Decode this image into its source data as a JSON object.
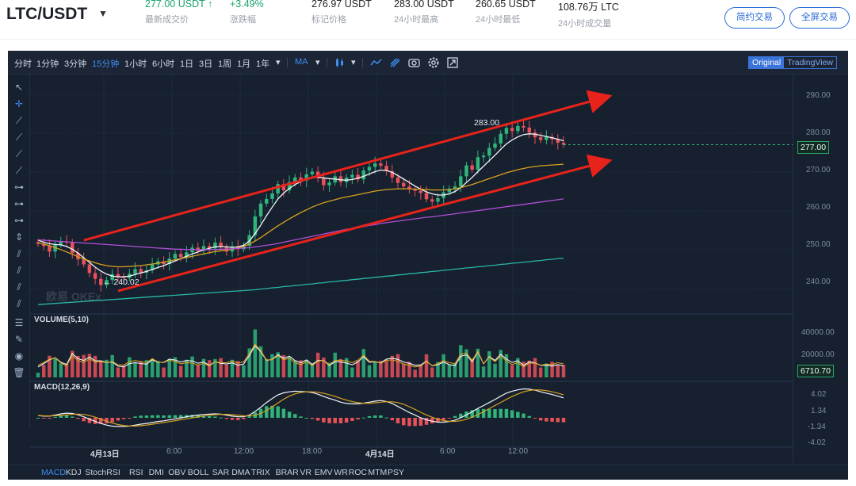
{
  "ticker": {
    "pair": "LTC/USDT",
    "caret": "▼",
    "last_price": "277.00 USDT ↑",
    "last_price_label": "最新成交价",
    "change": "+3.49%",
    "change_label": "涨跌幅",
    "mark_price": "276.97 USDT",
    "mark_price_label": "标记价格",
    "high": "283.00 USDT",
    "high_label": "24小时最高",
    "low": "260.65 USDT",
    "low_label": "24小时最低",
    "volume": "108.76万 LTC",
    "volume_label": "24小时成交量",
    "simple_btn": "简约交易",
    "full_btn": "全屏交易"
  },
  "toolbar": {
    "intervals": [
      "分时",
      "1分钟",
      "3分钟",
      "15分钟",
      "1小时",
      "6小时",
      "1日",
      "3日",
      "1周",
      "1月",
      "1年"
    ],
    "active_interval": "15分钟",
    "ma_label": "MA",
    "original_label": "Original",
    "tradingview_label": "TradingView"
  },
  "indicators": [
    "MACD",
    "KDJ",
    "StochRSI",
    "RSI",
    "DMI",
    "OBV",
    "BOLL",
    "SAR",
    "DMA",
    "TRIX",
    "BRAR",
    "VR",
    "EMV",
    "WR",
    "ROC",
    "MTM",
    "PSY"
  ],
  "active_indicator": "MACD",
  "panels": {
    "volume_label": "VOLUME(5,10)",
    "macd_label": "MACD(12,26,9)",
    "watermark": "欧易 OKEx",
    "high_annotation": "283.00",
    "low_annotation": "← 240.02"
  },
  "colors": {
    "up": "#2fb57a",
    "down": "#e8515a",
    "accent": "#3d8ef0",
    "trend": "#e8231b"
  },
  "chart_data": {
    "type": "candlestick",
    "price_axis_ticks": [
      "290.00",
      "280.00",
      "270.00",
      "260.00",
      "250.00",
      "240.00"
    ],
    "price_ylim": [
      234,
      295
    ],
    "current_price": "277.00",
    "volume_axis_ticks": [
      "40000.00",
      "20000.00"
    ],
    "current_volume": "6710.70",
    "macd_axis_ticks": [
      "4.02",
      "1.34",
      "-1.34",
      "-4.02"
    ],
    "x_ticks": [
      "4月13日",
      "6:00",
      "12:00",
      "18:00",
      "4月14日",
      "6:00",
      "12:00"
    ],
    "x_bold": [
      "4月13日",
      "4月14日"
    ],
    "high": 283.0,
    "low": 240.02,
    "close_series": [
      251.6,
      251.0,
      249.6,
      251.4,
      252.1,
      251.9,
      249.2,
      247.6,
      246.3,
      244.1,
      242.6,
      241.0,
      242.3,
      243.8,
      243.2,
      242.8,
      243.9,
      245.1,
      244.2,
      244.8,
      246.3,
      247.1,
      246.4,
      247.8,
      249.0,
      248.2,
      249.4,
      250.6,
      249.8,
      251.0,
      250.4,
      251.9,
      250.7,
      249.6,
      250.9,
      250.2,
      251.1,
      253.8,
      258.6,
      261.9,
      263.1,
      264.5,
      266.9,
      265.3,
      267.4,
      268.6,
      267.8,
      269.4,
      270.1,
      268.4,
      266.6,
      267.3,
      268.9,
      267.4,
      268.6,
      269.3,
      268.1,
      270.4,
      271.3,
      272.2,
      271.6,
      270.2,
      268.6,
      267.2,
      266.3,
      265.6,
      265.2,
      264.6,
      263.0,
      262.4,
      263.3,
      264.8,
      265.7,
      266.3,
      268.9,
      271.7,
      270.6,
      273.8,
      274.2,
      276.2,
      277.3,
      279.8,
      281.3,
      280.5,
      281.8,
      281.4,
      280.1,
      278.9,
      278.2,
      279.0,
      278.4,
      277.5,
      277.0
    ],
    "ma_series": [
      {
        "name": "MA-white",
        "values": [
          252.5,
          252.0,
          251.6,
          251.4,
          251.3,
          250.9,
          250.2,
          249.2,
          248.0,
          246.8,
          245.6,
          244.6,
          243.8,
          243.3,
          243.1,
          243.1,
          243.3,
          243.7,
          244.1,
          244.5,
          245.0,
          245.5,
          246.0,
          246.6,
          247.2,
          247.8,
          248.4,
          249.0,
          249.5,
          250.0,
          250.4,
          250.8,
          250.9,
          250.8,
          250.7,
          250.8,
          251.2,
          252.3,
          254.2,
          256.4,
          258.8,
          261.0,
          263.1,
          264.6,
          265.8,
          266.8,
          267.5,
          268.1,
          268.6,
          268.7,
          268.5,
          268.3,
          268.2,
          268.0,
          267.9,
          268.1,
          268.4,
          268.9,
          269.5,
          270.1,
          270.5,
          270.4,
          269.9,
          269.1,
          268.2,
          267.3,
          266.4,
          265.6,
          264.9,
          264.4,
          264.1,
          264.1,
          264.4,
          265.0,
          266.0,
          267.3,
          268.6,
          270.1,
          271.5,
          272.9,
          274.3,
          275.8,
          277.2,
          278.2,
          279.0,
          279.6,
          279.8,
          279.7,
          279.4,
          279.1,
          278.8,
          278.4,
          278.0
        ]
      },
      {
        "name": "MA-yellow",
        "values": [
          251.8,
          251.5,
          251.1,
          250.6,
          250.1,
          249.5,
          248.9,
          248.3,
          247.7,
          247.2,
          246.7,
          246.3,
          246.0,
          245.8,
          245.7,
          245.7,
          245.8,
          245.9,
          246.0,
          246.2,
          246.4,
          246.6,
          246.9,
          247.2,
          247.5,
          247.8,
          248.1,
          248.4,
          248.7,
          249.0,
          249.3,
          249.6,
          249.8,
          250.0,
          250.2,
          250.5,
          250.9,
          251.5,
          252.3,
          253.2,
          254.2,
          255.2,
          256.2,
          257.1,
          258.0,
          258.8,
          259.6,
          260.3,
          261.0,
          261.6,
          262.1,
          262.5,
          262.9,
          263.3,
          263.6,
          263.9,
          264.2,
          264.5,
          264.8,
          265.1,
          265.3,
          265.5,
          265.6,
          265.7,
          265.7,
          265.7,
          265.6,
          265.6,
          265.5,
          265.4,
          265.4,
          265.4,
          265.5,
          265.7,
          266.0,
          266.4,
          266.8,
          267.3,
          267.8,
          268.3,
          268.8,
          269.3,
          269.8,
          270.2,
          270.6,
          270.9,
          271.2,
          271.4,
          271.6,
          271.7,
          271.8,
          271.9,
          272.0
        ]
      },
      {
        "name": "MA-purple",
        "values": [
          252.6,
          252.5,
          252.4,
          252.3,
          252.2,
          252.1,
          252.0,
          251.9,
          251.8,
          251.7,
          251.6,
          251.5,
          251.4,
          251.3,
          251.2,
          251.1,
          251.0,
          250.9,
          250.8,
          250.7,
          250.6,
          250.5,
          250.4,
          250.3,
          250.2,
          250.2,
          250.1,
          250.1,
          250.1,
          250.1,
          250.1,
          250.1,
          250.2,
          250.2,
          250.3,
          250.4,
          250.5,
          250.6,
          250.8,
          251.0,
          251.2,
          251.4,
          251.7,
          252.0,
          252.3,
          252.6,
          252.9,
          253.2,
          253.5,
          253.8,
          254.1,
          254.4,
          254.7,
          255.0,
          255.3,
          255.5,
          255.8,
          256.0,
          256.3,
          256.5,
          256.8,
          257.0,
          257.2,
          257.4,
          257.6,
          257.8,
          258.0,
          258.2,
          258.4,
          258.5,
          258.7,
          258.9,
          259.1,
          259.3,
          259.5,
          259.7,
          259.9,
          260.1,
          260.3,
          260.5,
          260.7,
          260.9,
          261.1,
          261.3,
          261.5,
          261.7,
          261.9,
          262.1,
          262.3,
          262.5,
          262.7,
          262.9,
          263.1
        ]
      },
      {
        "name": "MA-teal",
        "values": [
          236.0,
          236.1,
          236.2,
          236.3,
          236.4,
          236.5,
          236.6,
          236.7,
          236.8,
          236.9,
          237.0,
          237.1,
          237.2,
          237.3,
          237.4,
          237.5,
          237.6,
          237.7,
          237.8,
          237.9,
          238.0,
          238.1,
          238.2,
          238.3,
          238.4,
          238.5,
          238.6,
          238.7,
          238.8,
          238.9,
          239.0,
          239.1,
          239.2,
          239.3,
          239.4,
          239.5,
          239.6,
          239.7,
          239.8,
          240.0,
          240.1,
          240.3,
          240.4,
          240.6,
          240.7,
          240.9,
          241.0,
          241.2,
          241.3,
          241.5,
          241.6,
          241.8,
          241.9,
          242.1,
          242.2,
          242.4,
          242.5,
          242.7,
          242.8,
          243.0,
          243.1,
          243.3,
          243.4,
          243.6,
          243.7,
          243.9,
          244.0,
          244.2,
          244.3,
          244.5,
          244.6,
          244.8,
          244.9,
          245.1,
          245.2,
          245.4,
          245.5,
          245.7,
          245.8,
          246.0,
          246.1,
          246.3,
          246.4,
          246.6,
          246.7,
          246.9,
          247.0,
          247.2,
          247.3,
          247.5,
          247.6,
          247.8,
          247.9
        ]
      }
    ],
    "trend_lines": [
      {
        "from_price": 252.5,
        "from_index": 8,
        "to_price": 289.0,
        "to_index": 92
      },
      {
        "from_price": 239.5,
        "from_index": 14,
        "to_price": 272.5,
        "to_index": 92
      }
    ]
  }
}
